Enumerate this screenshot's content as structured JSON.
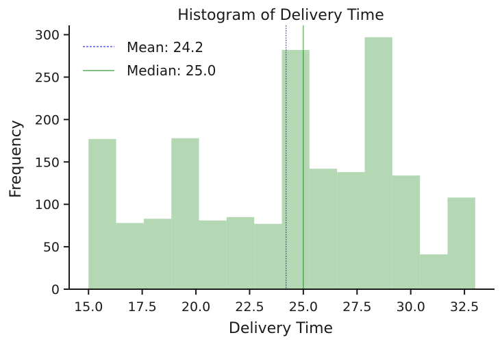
{
  "chart_data": {
    "type": "bar",
    "subtype": "histogram",
    "title": "Histogram of Delivery Time",
    "xlabel": "Delivery Time",
    "ylabel": "Frequency",
    "xlim": [
      14.1,
      33.9
    ],
    "ylim": [
      0,
      311
    ],
    "x_ticks": [
      "15.0",
      "17.5",
      "20.0",
      "22.5",
      "25.0",
      "27.5",
      "30.0",
      "32.5"
    ],
    "y_ticks": [
      "0",
      "50",
      "100",
      "150",
      "200",
      "250",
      "300"
    ],
    "bins": [
      {
        "start": 15.0,
        "end": 16.2857,
        "count": 177
      },
      {
        "start": 16.2857,
        "end": 17.5714,
        "count": 78
      },
      {
        "start": 17.5714,
        "end": 18.8571,
        "count": 83
      },
      {
        "start": 18.8571,
        "end": 20.1429,
        "count": 178
      },
      {
        "start": 20.1429,
        "end": 21.4286,
        "count": 81
      },
      {
        "start": 21.4286,
        "end": 22.7143,
        "count": 85
      },
      {
        "start": 22.7143,
        "end": 24.0,
        "count": 77
      },
      {
        "start": 24.0,
        "end": 25.2857,
        "count": 282
      },
      {
        "start": 25.2857,
        "end": 26.5714,
        "count": 142
      },
      {
        "start": 26.5714,
        "end": 27.8571,
        "count": 138
      },
      {
        "start": 27.8571,
        "end": 29.1429,
        "count": 297
      },
      {
        "start": 29.1429,
        "end": 30.4286,
        "count": 134
      },
      {
        "start": 30.4286,
        "end": 31.7143,
        "count": 41
      },
      {
        "start": 31.7143,
        "end": 33.0,
        "count": 108
      }
    ],
    "bar_color": "#b3d8b3",
    "mean": {
      "value": 24.2,
      "label": "Mean: 24.2",
      "color": "#0000ff",
      "style": "dashed"
    },
    "median": {
      "value": 25.0,
      "label": "Median: 25.0",
      "color": "#008000",
      "style": "solid"
    },
    "grid": false,
    "legend_position": "top-left"
  }
}
